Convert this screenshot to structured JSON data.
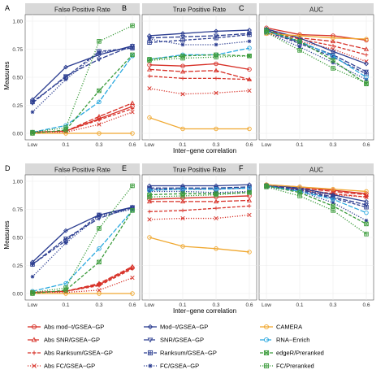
{
  "chart_data": {
    "type": "line",
    "x_categories": [
      "Low",
      "0.1",
      "0.3",
      "0.6"
    ],
    "xlabel": "Inter−gene correlation",
    "ylabel": "Measures",
    "ylim": [
      0,
      1
    ],
    "yticks": [
      "0.00",
      "0.25",
      "0.50",
      "0.75",
      "1.00"
    ],
    "grid": true,
    "legend_position": "bottom",
    "legend": [
      {
        "key": "abs_modt",
        "label": "Abs mod−t/GSEA−GP",
        "color": "#d73027",
        "marker": "circle",
        "dash": "solid"
      },
      {
        "key": "abs_snr",
        "label": "Abs SNR/GSEA−GP",
        "color": "#d73027",
        "marker": "triangle",
        "dash": "long"
      },
      {
        "key": "abs_ranksum",
        "label": "Abs Ranksum/GSEA−GP",
        "color": "#d73027",
        "marker": "plus",
        "dash": "dash"
      },
      {
        "key": "abs_fc",
        "label": "Abs FC/GSEA−GP",
        "color": "#d73027",
        "marker": "x",
        "dash": "dot"
      },
      {
        "key": "modt",
        "label": "Mod−t/GSEA−GP",
        "color": "#2c3e91",
        "marker": "diamond",
        "dash": "solid"
      },
      {
        "key": "snr",
        "label": "SNR/GSEA−GP",
        "color": "#2c3e91",
        "marker": "triangledown",
        "dash": "long"
      },
      {
        "key": "ranksum",
        "label": "Ranksum/GSEA−GP",
        "color": "#2c3e91",
        "marker": "squareplus",
        "dash": "dash"
      },
      {
        "key": "fc",
        "label": "FC/GSEA−GP",
        "color": "#2c3e91",
        "marker": "star",
        "dash": "dot"
      },
      {
        "key": "camera",
        "label": "CAMERA",
        "color": "#f0a830",
        "marker": "circle",
        "dash": "solid"
      },
      {
        "key": "rna_enrich",
        "label": "RNA−Enrich",
        "color": "#29a8df",
        "marker": "circle",
        "dash": "long"
      },
      {
        "key": "edger",
        "label": "edgeR/Preranked",
        "color": "#3a9b3a",
        "marker": "squarecross",
        "dash": "dash"
      },
      {
        "key": "fc_preranked",
        "label": "FC/Preranked",
        "color": "#3a9b3a",
        "marker": "squareplus",
        "dash": "dot"
      }
    ],
    "panels": [
      {
        "letter": "A",
        "title": "False Positive Rate",
        "series": {
          "abs_modt": [
            0.01,
            0.02,
            0.13,
            0.24
          ],
          "abs_snr": [
            0.01,
            0.02,
            0.15,
            0.27
          ],
          "abs_ranksum": [
            0.01,
            0.02,
            0.12,
            0.22
          ],
          "abs_fc": [
            0.01,
            0.01,
            0.08,
            0.19
          ],
          "modt": [
            0.3,
            0.59,
            0.7,
            0.78
          ],
          "snr": [
            0.27,
            0.51,
            0.66,
            0.78
          ],
          "ranksum": [
            0.28,
            0.5,
            0.73,
            0.76
          ],
          "fc": [
            0.19,
            0.48,
            0.72,
            0.76
          ],
          "camera": [
            0.0,
            0.0,
            0.0,
            0.0
          ],
          "rna_enrich": [
            0.01,
            0.07,
            0.28,
            0.69
          ],
          "edger": [
            0.0,
            0.03,
            0.38,
            0.7
          ],
          "fc_preranked": [
            0.01,
            0.05,
            0.82,
            0.96
          ]
        }
      },
      {
        "letter": "B",
        "title": "True Positive Rate",
        "series": {
          "abs_modt": [
            0.61,
            0.6,
            0.62,
            0.57
          ],
          "abs_snr": [
            0.57,
            0.55,
            0.56,
            0.48
          ],
          "abs_ranksum": [
            0.51,
            0.49,
            0.49,
            0.48
          ],
          "abs_fc": [
            0.4,
            0.35,
            0.36,
            0.38
          ],
          "modt": [
            0.87,
            0.89,
            0.91,
            0.92
          ],
          "snr": [
            0.85,
            0.86,
            0.87,
            0.89
          ],
          "ranksum": [
            0.81,
            0.83,
            0.85,
            0.88
          ],
          "fc": [
            0.84,
            0.79,
            0.79,
            0.82
          ],
          "camera": [
            0.14,
            0.04,
            0.04,
            0.04
          ],
          "rna_enrich": [
            0.66,
            0.7,
            0.7,
            0.76
          ],
          "edger": [
            0.66,
            0.69,
            0.7,
            0.69
          ],
          "fc_preranked": [
            0.65,
            0.67,
            0.68,
            0.69
          ]
        }
      },
      {
        "letter": "C",
        "title": "AUC",
        "series": {
          "abs_modt": [
            0.94,
            0.88,
            0.87,
            0.83
          ],
          "abs_snr": [
            0.92,
            0.85,
            0.82,
            0.75
          ],
          "abs_ranksum": [
            0.91,
            0.84,
            0.78,
            0.7
          ],
          "abs_fc": [
            0.89,
            0.82,
            0.75,
            0.64
          ],
          "modt": [
            0.93,
            0.85,
            0.73,
            0.62
          ],
          "snr": [
            0.92,
            0.81,
            0.7,
            0.55
          ],
          "ranksum": [
            0.91,
            0.8,
            0.68,
            0.53
          ],
          "fc": [
            0.9,
            0.77,
            0.63,
            0.48
          ],
          "camera": [
            0.89,
            0.87,
            0.85,
            0.84
          ],
          "rna_enrich": [
            0.91,
            0.82,
            0.69,
            0.5
          ],
          "edger": [
            0.92,
            0.82,
            0.65,
            0.44
          ],
          "fc_preranked": [
            0.9,
            0.74,
            0.58,
            0.45
          ]
        }
      },
      {
        "letter": "D",
        "title": "False Positive Rate",
        "series": {
          "abs_modt": [
            0.01,
            0.02,
            0.08,
            0.23
          ],
          "abs_snr": [
            0.01,
            0.02,
            0.09,
            0.24
          ],
          "abs_ranksum": [
            0.01,
            0.02,
            0.07,
            0.22
          ],
          "abs_fc": [
            0.01,
            0.01,
            0.03,
            0.14
          ],
          "modt": [
            0.28,
            0.56,
            0.7,
            0.77
          ],
          "snr": [
            0.26,
            0.49,
            0.67,
            0.77
          ],
          "ranksum": [
            0.26,
            0.47,
            0.7,
            0.76
          ],
          "fc": [
            0.15,
            0.45,
            0.69,
            0.75
          ],
          "camera": [
            0.0,
            0.0,
            0.0,
            0.0
          ],
          "rna_enrich": [
            0.02,
            0.09,
            0.4,
            0.74
          ],
          "edger": [
            0.0,
            0.03,
            0.28,
            0.74
          ],
          "fc_preranked": [
            0.01,
            0.05,
            0.58,
            0.96
          ]
        }
      },
      {
        "letter": "E",
        "title": "True Positive Rate",
        "series": {
          "abs_modt": [
            0.84,
            0.85,
            0.86,
            0.87
          ],
          "abs_snr": [
            0.82,
            0.82,
            0.82,
            0.83
          ],
          "abs_ranksum": [
            0.73,
            0.74,
            0.76,
            0.78
          ],
          "abs_fc": [
            0.66,
            0.67,
            0.67,
            0.7
          ],
          "modt": [
            0.96,
            0.96,
            0.96,
            0.97
          ],
          "snr": [
            0.94,
            0.94,
            0.94,
            0.95
          ],
          "ranksum": [
            0.93,
            0.93,
            0.93,
            0.94
          ],
          "fc": [
            0.91,
            0.91,
            0.9,
            0.91
          ],
          "camera": [
            0.5,
            0.42,
            0.4,
            0.37
          ],
          "rna_enrich": [
            0.92,
            0.93,
            0.93,
            0.94
          ],
          "edger": [
            0.88,
            0.89,
            0.89,
            0.9
          ],
          "fc_preranked": [
            0.86,
            0.87,
            0.88,
            0.9
          ]
        }
      },
      {
        "letter": "F",
        "title": "AUC",
        "series": {
          "abs_modt": [
            0.97,
            0.95,
            0.92,
            0.89
          ],
          "abs_snr": [
            0.96,
            0.94,
            0.91,
            0.88
          ],
          "abs_ranksum": [
            0.96,
            0.93,
            0.89,
            0.86
          ],
          "abs_fc": [
            0.95,
            0.92,
            0.88,
            0.86
          ],
          "modt": [
            0.97,
            0.94,
            0.88,
            0.82
          ],
          "snr": [
            0.96,
            0.93,
            0.86,
            0.79
          ],
          "ranksum": [
            0.96,
            0.92,
            0.85,
            0.77
          ],
          "fc": [
            0.95,
            0.91,
            0.81,
            0.65
          ],
          "camera": [
            0.97,
            0.95,
            0.93,
            0.91
          ],
          "rna_enrich": [
            0.96,
            0.91,
            0.84,
            0.72
          ],
          "edger": [
            0.96,
            0.9,
            0.78,
            0.62
          ],
          "fc_preranked": [
            0.95,
            0.87,
            0.74,
            0.53
          ]
        }
      }
    ]
  }
}
